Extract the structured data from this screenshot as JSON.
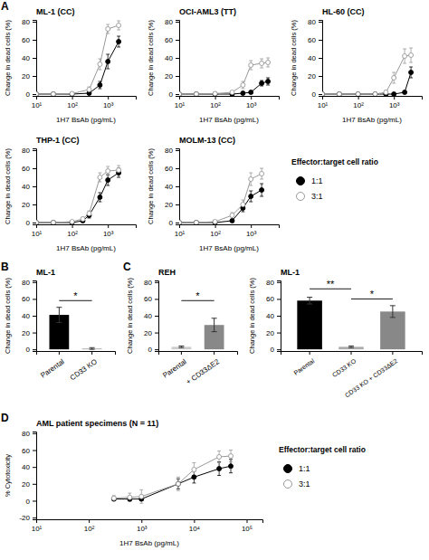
{
  "chart_data": [
    {
      "type": "line",
      "title": "ML-1 (CC)",
      "xlabel": "1H7 BsAb (pg/mL)",
      "ylabel": "Change in dead cells (%)",
      "log": "x",
      "xlim": [
        10,
        6000
      ],
      "xticks": [
        {
          "value": 10,
          "label": "10¹"
        },
        {
          "value": 100,
          "label": "10²"
        },
        {
          "value": 1000,
          "label": "10³"
        }
      ],
      "ylim": [
        -2,
        82
      ],
      "yticks": [
        0,
        20,
        40,
        60,
        80
      ],
      "annotations": [
        {
          "text": "A"
        }
      ],
      "series": [
        {
          "name": "1:1",
          "color": "#000000",
          "marker": "circle",
          "x": [
            10,
            30,
            100,
            300,
            600,
            1000,
            2000
          ],
          "values": [
            0,
            0,
            0,
            1,
            10,
            36,
            58
          ],
          "errors": [
            0.2,
            0.2,
            0.5,
            1,
            4,
            8,
            6
          ]
        },
        {
          "name": "3:1",
          "color": "#999999",
          "marker": "open_circle",
          "x": [
            10,
            30,
            100,
            300,
            600,
            1000,
            2000
          ],
          "values": [
            0,
            0,
            0.5,
            5,
            33,
            72,
            76
          ],
          "errors": [
            0.3,
            0.3,
            1,
            3,
            6,
            5,
            5
          ]
        }
      ]
    },
    {
      "type": "line",
      "title": "OCI-AML3 (TT)",
      "xlabel": "1H7 BsAb (pg/mL)",
      "ylabel": "Change in dead cells (%)",
      "log": "x",
      "xlim": [
        10,
        6000
      ],
      "xticks": [
        {
          "value": 10,
          "label": "10¹"
        },
        {
          "value": 100,
          "label": "10²"
        },
        {
          "value": 1000,
          "label": "10³"
        }
      ],
      "ylim": [
        -2,
        82
      ],
      "yticks": [
        0,
        20,
        40,
        60,
        80
      ],
      "series": [
        {
          "name": "1:1",
          "color": "#000000",
          "marker": "circle",
          "x": [
            10,
            30,
            100,
            300,
            600,
            1000,
            2000,
            3000
          ],
          "values": [
            0,
            0,
            0,
            0,
            1,
            2,
            12,
            14
          ],
          "errors": [
            0.1,
            0.2,
            0.3,
            0.4,
            0.5,
            1,
            3,
            4
          ]
        },
        {
          "name": "3:1",
          "color": "#999999",
          "marker": "open_circle",
          "x": [
            10,
            30,
            100,
            300,
            600,
            1000,
            2000,
            3000
          ],
          "values": [
            0,
            0,
            0.5,
            2,
            10,
            32,
            34,
            35
          ],
          "errors": [
            0.2,
            0.3,
            0.5,
            1,
            4,
            5,
            5,
            5
          ]
        }
      ]
    },
    {
      "type": "line",
      "title": "HL-60 (CC)",
      "xlabel": "1H7 BsAb (pg/mL)",
      "ylabel": "Change in dead cells (%)",
      "log": "x",
      "xlim": [
        10,
        6000
      ],
      "xticks": [
        {
          "value": 10,
          "label": "10¹"
        },
        {
          "value": 100,
          "label": "10²"
        },
        {
          "value": 1000,
          "label": "10³"
        }
      ],
      "ylim": [
        -2,
        82
      ],
      "yticks": [
        0,
        20,
        40,
        60,
        80
      ],
      "series": [
        {
          "name": "1:1",
          "color": "#000000",
          "marker": "circle",
          "x": [
            10,
            30,
            100,
            300,
            600,
            1000,
            2000,
            3000
          ],
          "values": [
            0,
            0,
            0,
            0,
            0,
            0,
            2,
            24
          ],
          "errors": [
            0.1,
            0.1,
            0.2,
            0.2,
            0.3,
            0.4,
            1,
            6
          ]
        },
        {
          "name": "3:1",
          "color": "#999999",
          "marker": "open_circle",
          "x": [
            10,
            30,
            100,
            300,
            600,
            1000,
            2000,
            3000
          ],
          "values": [
            0,
            0,
            0,
            0,
            2,
            18,
            42,
            43
          ],
          "errors": [
            0.2,
            0.3,
            0.5,
            0.5,
            2,
            6,
            8,
            8
          ]
        }
      ]
    },
    {
      "type": "line",
      "title": "THP-1 (CC)",
      "xlabel": "1H7 BsAb (pg/mL)",
      "ylabel": "Change in dead cells (%)",
      "log": "x",
      "xlim": [
        10,
        6000
      ],
      "xticks": [
        {
          "value": 10,
          "label": "10¹"
        },
        {
          "value": 100,
          "label": "10²"
        },
        {
          "value": 1000,
          "label": "10³"
        }
      ],
      "ylim": [
        -2,
        82
      ],
      "yticks": [
        0,
        20,
        40,
        60,
        80
      ],
      "series": [
        {
          "name": "1:1",
          "color": "#000000",
          "marker": "circle",
          "x": [
            10,
            30,
            100,
            200,
            300,
            600,
            1000,
            2000
          ],
          "values": [
            0,
            0,
            0,
            2,
            8,
            28,
            47,
            55
          ],
          "errors": [
            0.2,
            0.3,
            0.5,
            1,
            3,
            5,
            6,
            5
          ]
        },
        {
          "name": "3:1",
          "color": "#999999",
          "marker": "open_circle",
          "x": [
            10,
            30,
            100,
            200,
            300,
            600,
            1000,
            2000
          ],
          "values": [
            0,
            0,
            1,
            4,
            10,
            50,
            57,
            58
          ],
          "errors": [
            0.3,
            0.4,
            1,
            2,
            3,
            5,
            5,
            5
          ]
        }
      ]
    },
    {
      "type": "line",
      "title": "MOLM-13 (CC)",
      "xlabel": "1H7 BsAb (pg/mL)",
      "ylabel": "Change in dead cells (%)",
      "log": "x",
      "xlim": [
        10,
        6000
      ],
      "xticks": [
        {
          "value": 10,
          "label": "10¹"
        },
        {
          "value": 100,
          "label": "10²"
        },
        {
          "value": 1000,
          "label": "10³"
        }
      ],
      "ylim": [
        -2,
        82
      ],
      "yticks": [
        0,
        20,
        40,
        60,
        80
      ],
      "legend": "right",
      "legend_title": "Effector:target cell ratio",
      "series": [
        {
          "name": "1:1",
          "color": "#000000",
          "marker": "circle",
          "x": [
            10,
            30,
            100,
            300,
            600,
            1000,
            2000
          ],
          "values": [
            0,
            0,
            0,
            2,
            16,
            29,
            36
          ],
          "errors": [
            0.1,
            0.2,
            0.4,
            1,
            4,
            6,
            7
          ]
        },
        {
          "name": "3:1",
          "color": "#999999",
          "marker": "open_circle",
          "x": [
            10,
            30,
            100,
            300,
            600,
            1000,
            2000
          ],
          "values": [
            0,
            0,
            1,
            8,
            20,
            48,
            54
          ],
          "errors": [
            0.3,
            0.4,
            1,
            3,
            5,
            7,
            6
          ]
        }
      ]
    },
    {
      "type": "bar",
      "title": "ML-1",
      "ylabel": "Change in dead cells (%)",
      "categories": [
        "Parental",
        "CD33 KO"
      ],
      "values": [
        41,
        1
      ],
      "errors": [
        9,
        1
      ],
      "colors": [
        "#000000",
        "#aaaaaa"
      ],
      "ylim": [
        -2,
        82
      ],
      "yticks": [
        0,
        20,
        40,
        60,
        80
      ],
      "annotations": [
        {
          "text": "B"
        },
        {
          "text": "*",
          "x": [
            "Parental",
            "CD33 KO"
          ],
          "y": 58
        }
      ]
    },
    {
      "type": "bar",
      "title": "REH",
      "ylabel": "Change in dead cells (%)",
      "categories": [
        "Parental",
        "+ CD33ΔE2"
      ],
      "values": [
        3,
        29
      ],
      "errors": [
        1,
        8
      ],
      "colors": [
        "#cccccc",
        "#888888"
      ],
      "ylim": [
        -2,
        82
      ],
      "yticks": [
        0,
        20,
        40,
        60,
        80
      ],
      "annotations": [
        {
          "text": "C"
        },
        {
          "text": "*",
          "x": [
            "Parental",
            "+ CD33ΔE2"
          ],
          "y": 58
        }
      ]
    },
    {
      "type": "bar",
      "title": "ML-1",
      "ylabel": "Change in dead cells (%)",
      "categories": [
        "Parental",
        "CD33 KO",
        "CD33 KO + CD33ΔE2"
      ],
      "values": [
        58,
        3,
        45
      ],
      "errors": [
        4,
        1,
        7
      ],
      "colors": [
        "#000000",
        "#aaaaaa",
        "#888888"
      ],
      "ylim": [
        -2,
        82
      ],
      "yticks": [
        0,
        20,
        40,
        60,
        80
      ],
      "annotations": [
        {
          "text": "**",
          "x": [
            "Parental",
            "CD33 KO"
          ],
          "y": 72
        },
        {
          "text": "*",
          "x": [
            "CD33 KO",
            "CD33 KO + CD33ΔE2"
          ],
          "y": 60
        }
      ]
    },
    {
      "type": "line",
      "title": "AML patient specimens (N = 11)",
      "xlabel": "1H7 BsAb (pg/mL)",
      "ylabel": "% Cytotoxicity",
      "log": "x",
      "xlim": [
        10,
        200000
      ],
      "xticks": [
        {
          "value": 10,
          "label": "10¹"
        },
        {
          "value": 100,
          "label": "10²"
        },
        {
          "value": 1000,
          "label": "10³"
        },
        {
          "value": 10000,
          "label": "10⁴"
        },
        {
          "value": 100000,
          "label": "10⁵"
        }
      ],
      "ylim": [
        -22,
        82
      ],
      "yticks": [
        -20,
        0,
        20,
        40,
        60,
        80
      ],
      "annotations": [
        {
          "text": "D"
        }
      ],
      "legend": "right",
      "legend_title": "Effector:target cell ratio",
      "series": [
        {
          "name": "1:1",
          "color": "#000000",
          "marker": "circle",
          "x": [
            300,
            600,
            1000,
            5000,
            10000,
            30000,
            50000
          ],
          "values": [
            2,
            2,
            2,
            20,
            28,
            38,
            41
          ],
          "errors": [
            2,
            2,
            2,
            6,
            7,
            8,
            8
          ]
        },
        {
          "name": "3:1",
          "color": "#999999",
          "marker": "open_circle",
          "x": [
            300,
            600,
            1000,
            5000,
            10000,
            30000,
            50000
          ],
          "values": [
            3,
            4,
            5,
            20,
            37,
            52,
            53
          ],
          "errors": [
            3,
            5,
            8,
            8,
            8,
            7,
            7
          ]
        }
      ]
    }
  ]
}
